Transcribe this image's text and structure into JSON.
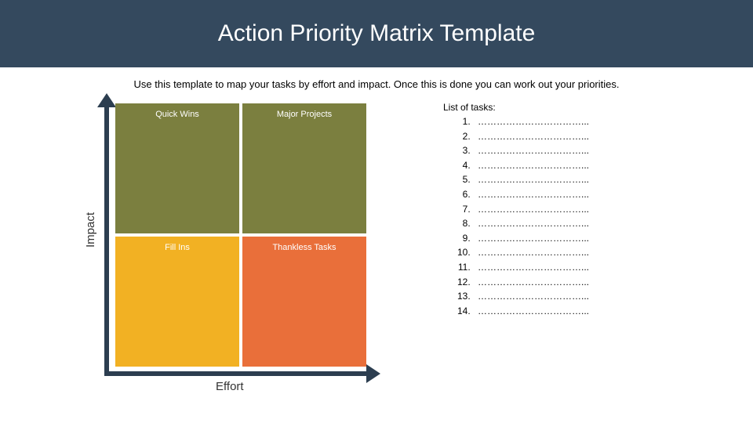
{
  "header": {
    "title": "Action Priority Matrix Template",
    "bg_color": "#34495e",
    "title_color": "#ffffff",
    "title_fontsize": 30
  },
  "subtitle": "Use this template to map your tasks by effort and impact. Once this is done you can work out your priorities.",
  "matrix": {
    "y_axis_label": "Impact",
    "x_axis_label": "Effort",
    "axis_color": "#2c3e50",
    "quadrants": [
      {
        "label": "Quick Wins",
        "bg": "#7b7f3f",
        "fg": "#ffffff"
      },
      {
        "label": "Major Projects",
        "bg": "#7b7f3f",
        "fg": "#ffffff"
      },
      {
        "label": "Fill Ins",
        "bg": "#f2b123",
        "fg": "#ffffff"
      },
      {
        "label": "Thankless Tasks",
        "bg": "#e96f3a",
        "fg": "#ffffff"
      }
    ]
  },
  "tasks": {
    "title": "List of tasks:",
    "count": 14,
    "placeholder": "……………………………..."
  }
}
